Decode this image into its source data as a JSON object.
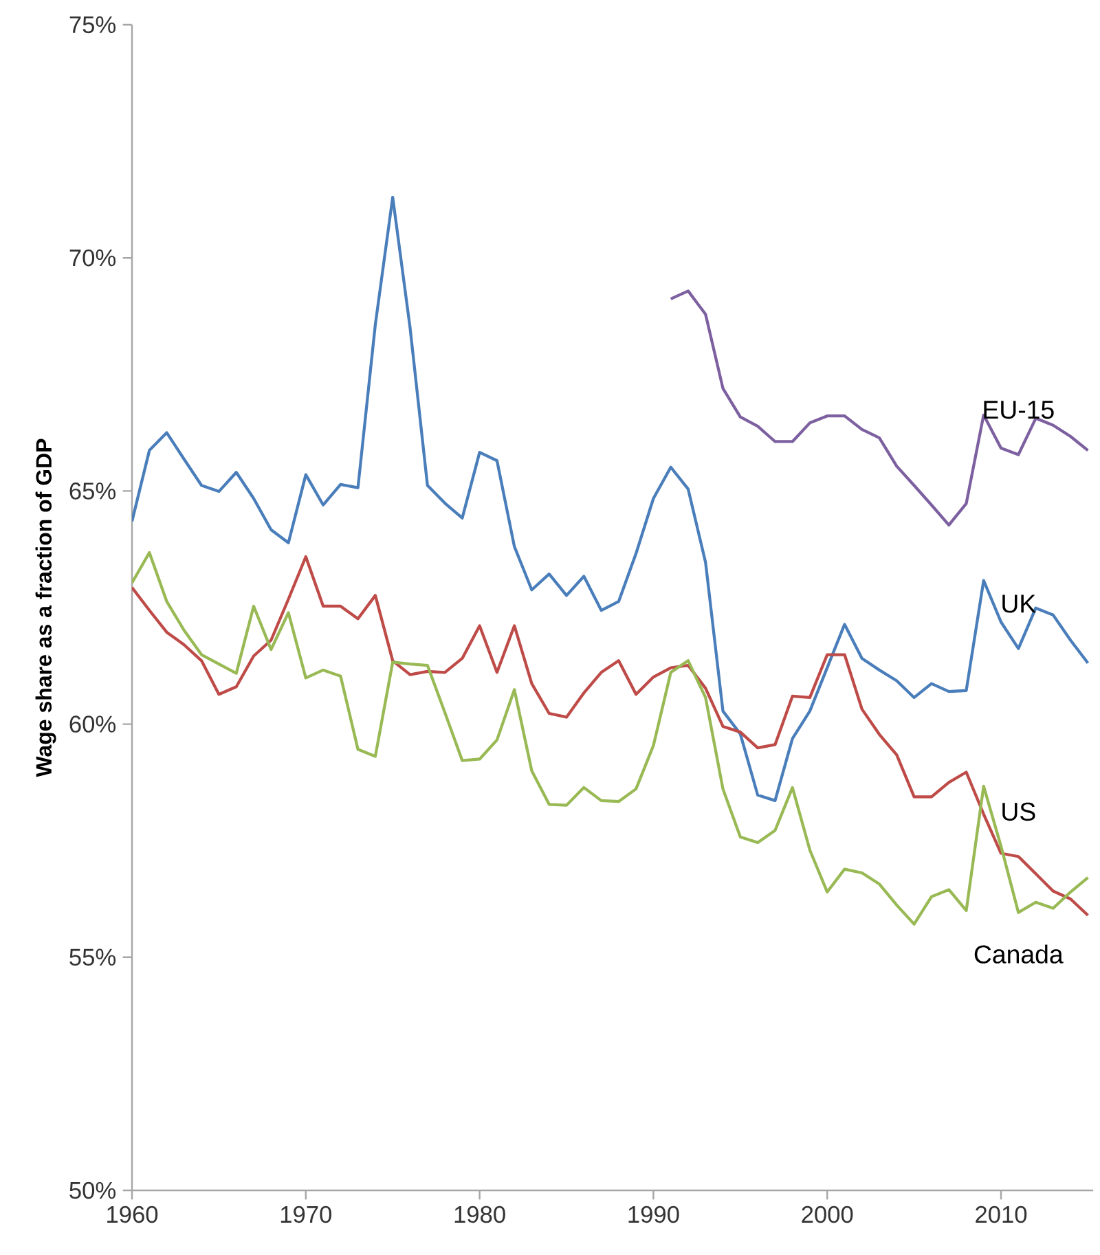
{
  "chart_data": {
    "type": "line",
    "ylabel": "Wage share as a fraction of GDP",
    "xlim": [
      1960,
      2015.3
    ],
    "xticks": [
      1960,
      1970,
      1980,
      1990,
      2000,
      2010
    ],
    "ylim": [
      50,
      75
    ],
    "yticks": [
      {
        "value": 50,
        "label": "50%"
      },
      {
        "value": 55,
        "label": "55%"
      },
      {
        "value": 60,
        "label": "60%"
      },
      {
        "value": 65,
        "label": "65%"
      },
      {
        "value": 70,
        "label": "70%"
      },
      {
        "value": 75,
        "label": "75%"
      }
    ],
    "grid": false,
    "legend": false,
    "marker": "none",
    "line_style": "solid",
    "x": [
      1960,
      1961,
      1962,
      1963,
      1964,
      1965,
      1966,
      1967,
      1968,
      1969,
      1970,
      1971,
      1972,
      1973,
      1974,
      1975,
      1976,
      1977,
      1978,
      1979,
      1980,
      1981,
      1982,
      1983,
      1984,
      1985,
      1986,
      1987,
      1988,
      1989,
      1990,
      1991,
      1992,
      1993,
      1994,
      1995,
      1996,
      1997,
      1998,
      1999,
      2000,
      2001,
      2002,
      2003,
      2004,
      2005,
      2006,
      2007,
      2008,
      2009,
      2010,
      2011,
      2012,
      2013,
      2014,
      2015
    ],
    "series": [
      {
        "name": "UK",
        "color": "#4a7ebb",
        "values": [
          64.35,
          65.87,
          66.25,
          65.68,
          65.12,
          64.99,
          65.4,
          64.84,
          64.17,
          63.89,
          65.35,
          64.7,
          65.14,
          65.07,
          68.57,
          71.3,
          68.5,
          65.12,
          64.74,
          64.42,
          65.83,
          65.65,
          63.81,
          62.88,
          63.22,
          62.76,
          63.17,
          62.44,
          62.63,
          63.66,
          64.84,
          65.51,
          65.04,
          63.47,
          60.28,
          59.79,
          58.48,
          58.36,
          59.69,
          60.28,
          61.21,
          62.14,
          61.41,
          61.16,
          60.93,
          60.57,
          60.87,
          60.7,
          60.72,
          63.08,
          62.19,
          61.62,
          62.49,
          62.34,
          61.8,
          61.31
        ]
      },
      {
        "name": "EU-15",
        "color": "#7d60a0",
        "x": [
          1991,
          1992,
          1993,
          1994,
          1995,
          1996,
          1997,
          1998,
          1999,
          2000,
          2001,
          2002,
          2003,
          2004,
          2005,
          2006,
          2007,
          2008,
          2009,
          2010,
          2011,
          2012,
          2013,
          2014,
          2015
        ],
        "values": [
          69.12,
          69.29,
          68.79,
          67.2,
          66.59,
          66.39,
          66.06,
          66.06,
          66.46,
          66.61,
          66.61,
          66.32,
          66.14,
          65.53,
          65.12,
          64.7,
          64.27,
          64.73,
          66.63,
          65.92,
          65.78,
          66.56,
          66.41,
          66.17,
          65.87
        ]
      },
      {
        "name": "US",
        "color": "#be4b48",
        "values": [
          62.93,
          62.44,
          61.97,
          61.7,
          61.36,
          60.64,
          60.8,
          61.46,
          61.8,
          62.68,
          63.59,
          62.53,
          62.53,
          62.26,
          62.76,
          61.36,
          61.06,
          61.13,
          61.11,
          61.41,
          62.11,
          61.11,
          62.11,
          60.87,
          60.23,
          60.15,
          60.67,
          61.11,
          61.36,
          60.64,
          61.01,
          61.21,
          61.26,
          60.77,
          59.95,
          59.83,
          59.49,
          59.56,
          60.6,
          60.57,
          61.49,
          61.49,
          60.32,
          59.78,
          59.34,
          58.44,
          58.44,
          58.75,
          58.97,
          58.07,
          57.23,
          57.16,
          56.79,
          56.42,
          56.25,
          55.9
        ]
      },
      {
        "name": "Canada",
        "color": "#98b954",
        "values": [
          63.03,
          63.68,
          62.63,
          62.01,
          61.49,
          61.29,
          61.09,
          62.53,
          61.6,
          62.39,
          60.99,
          61.16,
          61.03,
          59.46,
          59.31,
          61.33,
          61.29,
          61.26,
          60.25,
          59.22,
          59.25,
          59.66,
          60.74,
          59.0,
          58.28,
          58.26,
          58.64,
          58.36,
          58.34,
          58.61,
          59.54,
          61.11,
          61.36,
          60.57,
          58.61,
          57.58,
          57.46,
          57.72,
          58.64,
          57.3,
          56.4,
          56.89,
          56.81,
          56.57,
          56.12,
          55.71,
          56.3,
          56.45,
          56.0,
          58.67,
          57.38,
          55.96,
          56.18,
          56.05,
          56.4,
          56.71
        ]
      }
    ]
  }
}
